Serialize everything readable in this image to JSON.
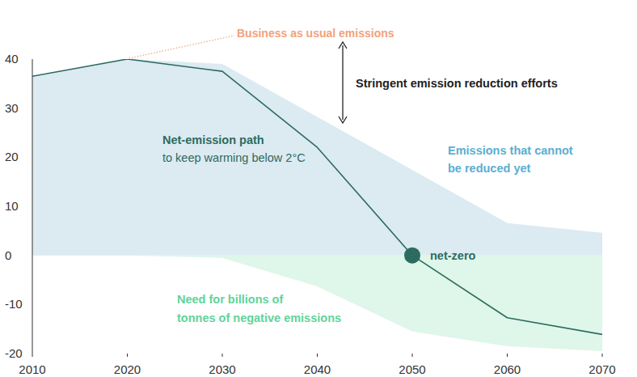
{
  "chart_data": {
    "type": "area",
    "x": [
      2010,
      2020,
      2030,
      2040,
      2050,
      2060,
      2070
    ],
    "xlim": [
      2010,
      2070
    ],
    "xticks": [
      2010,
      2020,
      2030,
      2040,
      2050,
      2060,
      2070
    ],
    "ylim": [
      -20,
      40
    ],
    "yticks": [
      -20,
      -10,
      0,
      10,
      20,
      30,
      40
    ],
    "grid": false,
    "series": [
      {
        "name": "Business as usual emissions",
        "type": "area",
        "color": "#dceaf2",
        "values": [
          36.5,
          40,
          39,
          28.2,
          17.4,
          6.6,
          4.6
        ]
      },
      {
        "name": "Net-emission path",
        "type": "line",
        "color": "#2c6b5f",
        "values": [
          36.5,
          40,
          37.5,
          22,
          0,
          -12.7,
          -16.1
        ]
      },
      {
        "type": "area",
        "color": "#dff6ea",
        "values": [
          0,
          0,
          -0.5,
          -6.3,
          -15.5,
          -18.5,
          -19.5
        ]
      }
    ],
    "annotations": [
      {
        "text": "to keep warming below 2°C"
      },
      {
        "lines": [
          "Emissions that cannot",
          "be reduced yet"
        ]
      },
      {
        "text": "Stringent emission reduction efforts"
      },
      {
        "text": "net-zero"
      },
      {
        "lines": [
          "Need for billions of",
          "tonnes of negative emissions"
        ]
      }
    ]
  }
}
